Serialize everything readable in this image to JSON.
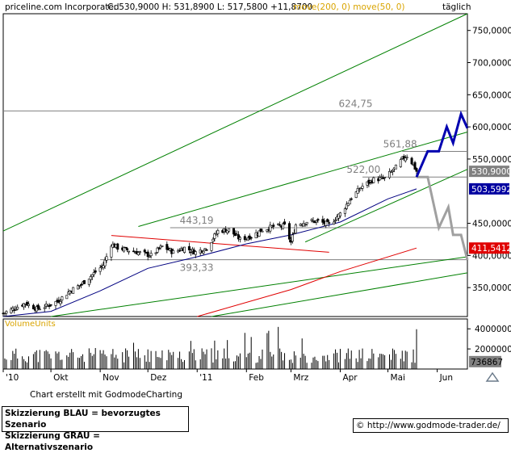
{
  "header": {
    "title": "priceline.com Incorporated",
    "ohlc": "C: 530,9000  H: 531,8900  L: 517,5800  +11,8700",
    "ma_label": "move(200, 0)  move(50, 0)",
    "timeframe": "täglich"
  },
  "chart_data": {
    "type": "candlestick",
    "instrument": "priceline.com Incorporated",
    "interval": "täglich",
    "y_axis": {
      "ticks": [
        "750,0000",
        "700,0000",
        "650,0000",
        "600,0000",
        "550,0000",
        "450,0000",
        "400,0000",
        "350,0000"
      ],
      "tick_values": [
        750,
        700,
        650,
        600,
        550,
        450,
        400,
        350
      ],
      "range": [
        305,
        776
      ]
    },
    "x_axis": {
      "labels": [
        "'10",
        "Okt",
        "Nov",
        "Dez",
        "'11",
        "Feb",
        "Mrz",
        "Apr",
        "Mai",
        "Jun"
      ],
      "start": "2010-09-01",
      "end": "2011-06-20"
    },
    "level_labels": [
      "624,75",
      "561,88",
      "522,00",
      "443,19",
      "393,33"
    ],
    "horizontal_levels": [
      624.75,
      561.88,
      522.0,
      443.19,
      393.33
    ],
    "price_badges": [
      {
        "label": "530,9000",
        "value": 530.9,
        "color": "#808080"
      },
      {
        "label": "503,5992",
        "value": 503.6,
        "color": "#0000a0"
      },
      {
        "label": "411,5412",
        "value": 411.5,
        "color": "#e00000"
      }
    ],
    "close_path": [
      [
        "2010-09-01",
        310
      ],
      [
        "2010-09-08",
        318
      ],
      [
        "2010-09-15",
        326
      ],
      [
        "2010-09-22",
        317
      ],
      [
        "2010-09-29",
        322
      ],
      [
        "2010-10-06",
        330
      ],
      [
        "2010-10-13",
        345
      ],
      [
        "2010-10-20",
        355
      ],
      [
        "2010-10-27",
        370
      ],
      [
        "2010-11-03",
        385
      ],
      [
        "2010-11-08",
        418
      ],
      [
        "2010-11-12",
        412
      ],
      [
        "2010-11-19",
        408
      ],
      [
        "2010-11-26",
        404
      ],
      [
        "2010-12-03",
        400
      ],
      [
        "2010-12-10",
        414
      ],
      [
        "2010-12-17",
        405
      ],
      [
        "2010-12-24",
        412
      ],
      [
        "2010-12-31",
        405
      ],
      [
        "2011-01-07",
        412
      ],
      [
        "2011-01-14",
        438
      ],
      [
        "2011-01-21",
        440
      ],
      [
        "2011-01-28",
        425
      ],
      [
        "2011-02-04",
        430
      ],
      [
        "2011-02-11",
        440
      ],
      [
        "2011-02-18",
        445
      ],
      [
        "2011-02-25",
        446
      ],
      [
        "2011-03-01",
        420
      ],
      [
        "2011-03-04",
        448
      ],
      [
        "2011-03-11",
        453
      ],
      [
        "2011-03-18",
        453
      ],
      [
        "2011-03-25",
        448
      ],
      [
        "2011-04-01",
        465
      ],
      [
        "2011-04-08",
        490
      ],
      [
        "2011-04-15",
        508
      ],
      [
        "2011-04-22",
        518
      ],
      [
        "2011-04-29",
        520
      ],
      [
        "2011-05-06",
        537
      ],
      [
        "2011-05-10",
        550
      ],
      [
        "2011-05-13",
        555
      ],
      [
        "2011-05-17",
        541
      ],
      [
        "2011-05-19",
        530.9
      ]
    ],
    "series": [
      {
        "values": [
          [
            310,
            "2010-09-01"
          ]
        ],
        "kind": "candles"
      }
    ],
    "moving_averages": [
      {
        "period": 50,
        "color": "#000080",
        "points": [
          [
            "2010-09-01",
            305
          ],
          [
            "2010-10-01",
            313
          ],
          [
            "2010-11-01",
            345
          ],
          [
            "2010-12-01",
            380
          ],
          [
            "2011-01-01",
            398
          ],
          [
            "2011-02-01",
            418
          ],
          [
            "2011-03-01",
            432
          ],
          [
            "2011-04-01",
            452
          ],
          [
            "2011-05-01",
            488
          ],
          [
            "2011-05-19",
            503.6
          ]
        ]
      },
      {
        "period": 200,
        "color": "#e00000",
        "points": [
          [
            "2011-01-01",
            305
          ],
          [
            "2011-03-01",
            347
          ],
          [
            "2011-04-01",
            375
          ],
          [
            "2011-05-19",
            411.5
          ]
        ]
      }
    ],
    "trendlines": [
      {
        "color": "#008000",
        "from": [
          "2010-09-01",
          438
        ],
        "to": [
          "2011-06-20",
          776
        ]
      },
      {
        "color": "#008000",
        "from": [
          "2010-11-25",
          445
        ],
        "to": [
          "2011-06-20",
          592
        ]
      },
      {
        "color": "#008000",
        "from": [
          "2011-03-10",
          421
        ],
        "to": [
          "2011-06-20",
          534
        ]
      },
      {
        "color": "#008000",
        "from": [
          "2010-10-01",
          305
        ],
        "to": [
          "2011-06-20",
          398
        ]
      },
      {
        "color": "#008000",
        "from": [
          "2011-01-10",
          305
        ],
        "to": [
          "2011-06-20",
          373
        ]
      },
      {
        "color": "#e00000",
        "from": [
          "2010-11-08",
          431
        ],
        "to": [
          "2011-03-25",
          405
        ]
      }
    ],
    "blue_scenario": [
      [
        "2011-05-19",
        522
      ],
      [
        "2011-05-26",
        562
      ],
      [
        "2011-06-02",
        562
      ],
      [
        "2011-06-07",
        600
      ],
      [
        "2011-06-11",
        575
      ],
      [
        "2011-06-16",
        620
      ],
      [
        "2011-06-20",
        598
      ]
    ],
    "gray_scenario": [
      [
        "2011-05-19",
        522
      ],
      [
        "2011-05-26",
        522
      ],
      [
        "2011-06-02",
        443
      ],
      [
        "2011-06-08",
        475
      ],
      [
        "2011-06-11",
        432
      ],
      [
        "2011-06-16",
        432
      ],
      [
        "2011-06-20",
        393
      ]
    ],
    "volume": {
      "label": "VolumeUnits",
      "ticks": [
        "4000000",
        "2000000"
      ],
      "tick_values": [
        4000000,
        2000000
      ],
      "last_label": "736867",
      "last_value": 736867
    }
  },
  "footer": {
    "credit": "Chart erstellt mit GodmodeCharting",
    "legend_blue": "Skizzierung BLAU = bevorzugtes Szenario",
    "legend_gray": "Skizzierung GRAU = Alternativszenario",
    "url": "© http://www.godmode-trader.de/"
  },
  "colors": {
    "green": "#008000",
    "blue_scenario": "#0000b0",
    "gray_scenario": "#a0a0a0",
    "ma50": "#000080",
    "ma200": "#e00000"
  }
}
